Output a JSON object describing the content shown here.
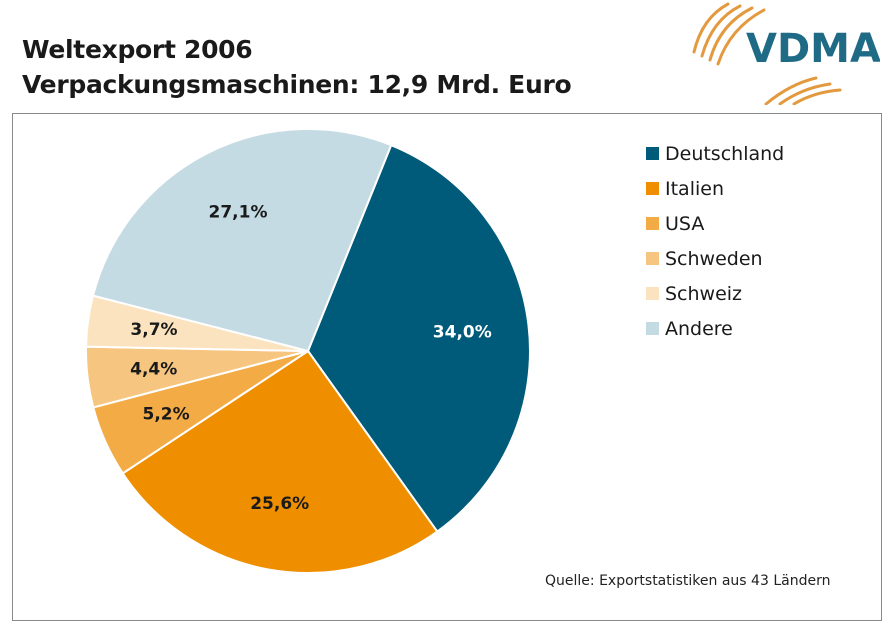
{
  "title": {
    "line1": "Weltexport 2006",
    "line2": "Verpackungsmaschinen: 12,9 Mrd.  Euro"
  },
  "logo": {
    "text": "VDMA",
    "icon": "vdma-logo-icon",
    "colors": {
      "text": "#1f6b86",
      "arcs": "#e39a3f"
    }
  },
  "source": "Quelle: Exportstatistiken aus 43 Ländern",
  "chart_data": {
    "type": "pie",
    "title": "Weltexport 2006",
    "subtitle": "Verpackungsmaschinen: 12,9 Mrd.  Euro",
    "legend_position": "right",
    "slices": [
      {
        "label": "Deutschland",
        "value": 34.0,
        "display": "34,0%",
        "color": "#005a79",
        "label_color": "#ffffff"
      },
      {
        "label": "Italien",
        "value": 25.6,
        "display": "25,6%",
        "color": "#ef8f00",
        "label_color": "#1a1a1a"
      },
      {
        "label": "USA",
        "value": 5.2,
        "display": "5,2%",
        "color": "#f2ab45",
        "label_color": "#1a1a1a"
      },
      {
        "label": "Schweden",
        "value": 4.4,
        "display": "4,4%",
        "color": "#f6c680",
        "label_color": "#1a1a1a"
      },
      {
        "label": "Schweiz",
        "value": 3.7,
        "display": "3,7%",
        "color": "#fbe3bf",
        "label_color": "#1a1a1a"
      },
      {
        "label": "Andere",
        "value": 27.1,
        "display": "27,1%",
        "color": "#c4dbe3",
        "label_color": "#1a1a1a"
      }
    ]
  }
}
